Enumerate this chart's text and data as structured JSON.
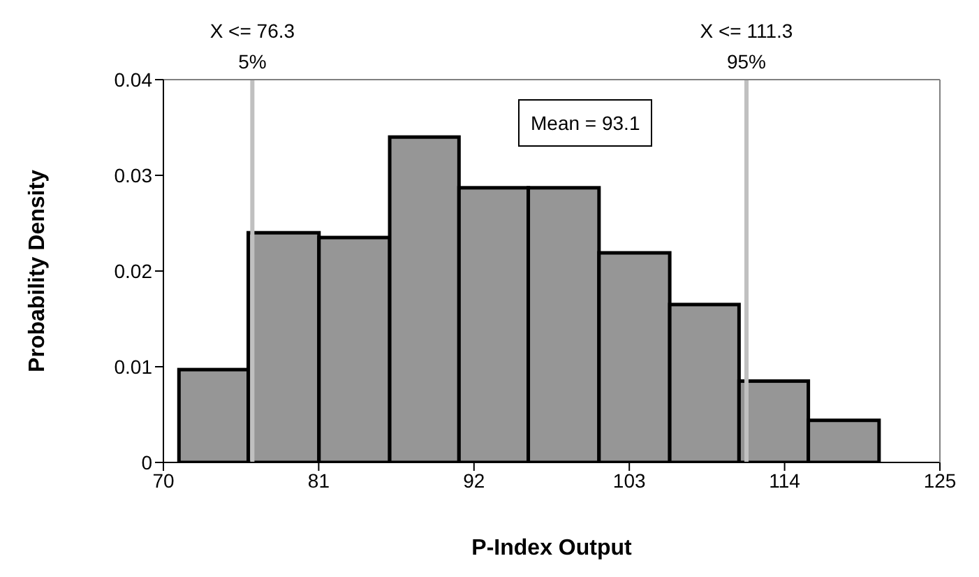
{
  "chart_data": {
    "type": "histogram",
    "xlabel": "P-Index Output",
    "ylabel": "Probability Density",
    "bins": [
      71.1,
      76.0,
      81.0,
      86.0,
      90.9,
      95.8,
      100.8,
      105.8,
      110.7,
      115.6,
      120.6
    ],
    "values": [
      0.0097,
      0.024,
      0.0235,
      0.034,
      0.0287,
      0.0287,
      0.0219,
      0.0165,
      0.0085,
      0.0044
    ],
    "color": "#969696",
    "xlim": [
      70,
      125
    ],
    "xticks": [
      70,
      81,
      92,
      103,
      114,
      125
    ],
    "ylim": [
      0,
      0.04
    ],
    "yticks": [
      0,
      0.01,
      0.02,
      0.03,
      0.04
    ],
    "grid": false,
    "ref_lines": [
      {
        "axis": "x",
        "value": 76.3,
        "label": "X <= 76.3\n5%",
        "color": "#c0c0c0"
      },
      {
        "axis": "x",
        "value": 111.3,
        "label": "X <= 111.3\n95%",
        "color": "#c0c0c0"
      }
    ],
    "annotations": [
      "Mean = 93.1"
    ]
  }
}
